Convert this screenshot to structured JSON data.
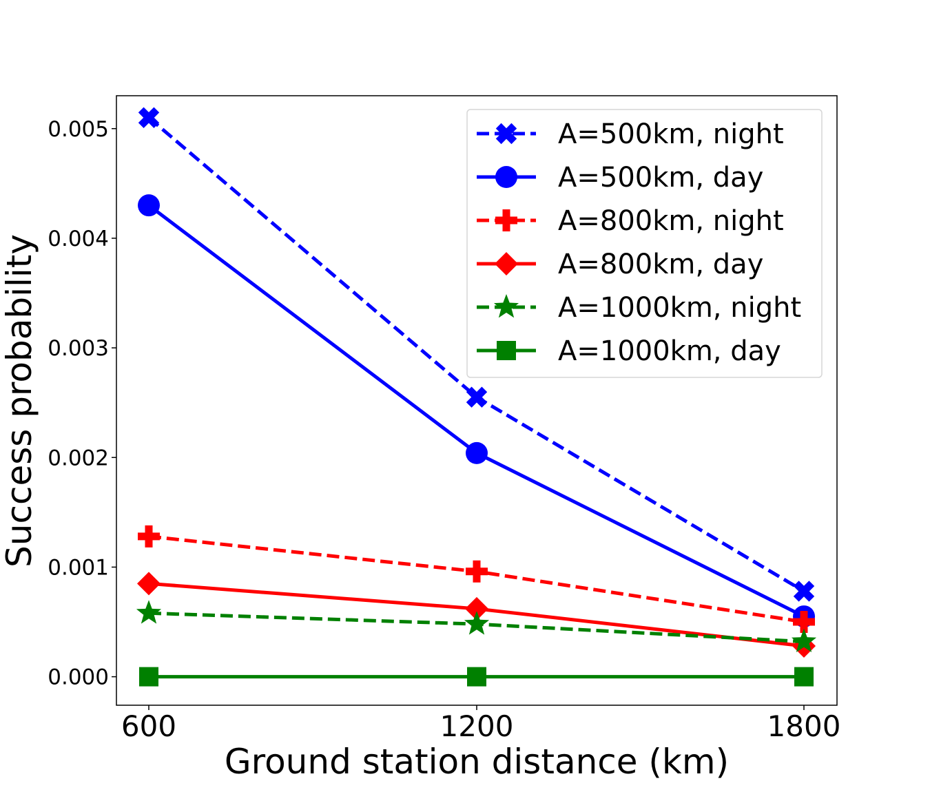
{
  "chart_data": {
    "type": "line",
    "title": "",
    "xlabel": "Ground station distance (km)",
    "ylabel": "Success probability",
    "x": [
      600,
      1200,
      1800
    ],
    "x_tick_labels": [
      "600",
      "1200",
      "1800"
    ],
    "ylim": [
      -0.00026,
      0.0053
    ],
    "y_ticks": [
      0.0,
      0.001,
      0.002,
      0.003,
      0.004,
      0.005
    ],
    "y_tick_labels": [
      "0.000",
      "0.001",
      "0.002",
      "0.003",
      "0.004",
      "0.005"
    ],
    "grid": false,
    "legend_position": "top-right",
    "series": [
      {
        "name": "A=500km, night",
        "values": [
          0.0051,
          0.00255,
          0.00078
        ],
        "color": "#0000ff",
        "dashed": true,
        "marker": "X"
      },
      {
        "name": "A=500km, day",
        "values": [
          0.0043,
          0.00204,
          0.00055
        ],
        "color": "#0000ff",
        "dashed": false,
        "marker": "o"
      },
      {
        "name": "A=800km, night",
        "values": [
          0.00128,
          0.00096,
          0.0005
        ],
        "color": "#ff0000",
        "dashed": true,
        "marker": "P"
      },
      {
        "name": "A=800km, day",
        "values": [
          0.00085,
          0.00062,
          0.00028
        ],
        "color": "#ff0000",
        "dashed": false,
        "marker": "D"
      },
      {
        "name": "A=1000km, night",
        "values": [
          0.00058,
          0.00048,
          0.00032
        ],
        "color": "#008000",
        "dashed": true,
        "marker": "*"
      },
      {
        "name": "A=1000km, day",
        "values": [
          0.0,
          0.0,
          0.0
        ],
        "color": "#008000",
        "dashed": false,
        "marker": "s"
      }
    ]
  }
}
